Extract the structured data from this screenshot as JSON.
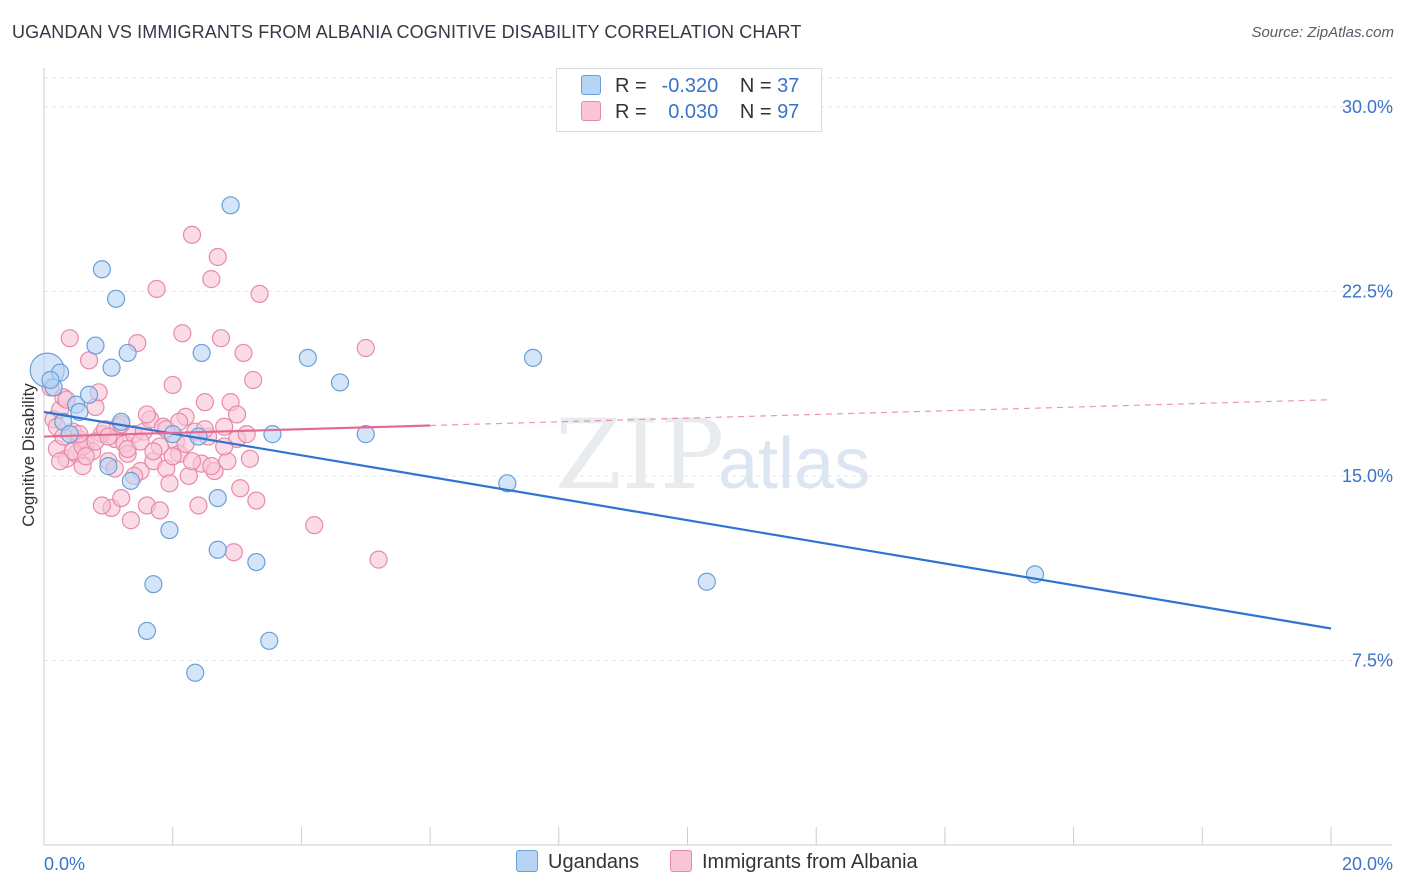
{
  "header": {
    "title": "UGANDAN VS IMMIGRANTS FROM ALBANIA COGNITIVE DISABILITY CORRELATION CHART",
    "source": "Source: ZipAtlas.com"
  },
  "legend": {
    "rows": [
      {
        "r_label": "R =",
        "r_value": "-0.320",
        "n_label": "N =",
        "n_value": "37"
      },
      {
        "r_label": "R =",
        "r_value": "0.030",
        "n_label": "N =",
        "n_value": "97"
      }
    ],
    "bottom": [
      {
        "label": "Ugandans"
      },
      {
        "label": "Immigrants from Albania"
      }
    ]
  },
  "watermark": {
    "zip": "ZIP",
    "atlas": "atlas"
  },
  "colors": {
    "ugandans_fill": "#b8d4f5",
    "ugandans_stroke": "#6a9fd8",
    "ugandans_line": "#2f74d0",
    "albania_fill": "#f8c4d6",
    "albania_stroke": "#e88aab",
    "albania_line": "#e46a93",
    "axis_label": "#3a73c9",
    "grid": "#e2e6ea"
  },
  "chart_data": {
    "type": "scatter",
    "title": "UGANDAN VS IMMIGRANTS FROM ALBANIA COGNITIVE DISABILITY CORRELATION CHART",
    "xlabel": "",
    "ylabel": "Cognitive Disability",
    "xlim": [
      0,
      20
    ],
    "ylim": [
      0,
      31.5
    ],
    "x_tick_labels": [
      "0.0%",
      "20.0%"
    ],
    "y_ticks": [
      7.5,
      15.0,
      22.5,
      30.0
    ],
    "y_tick_labels": [
      "7.5%",
      "15.0%",
      "22.5%",
      "30.0%"
    ],
    "grid": true,
    "legend_position": "top-center",
    "series": [
      {
        "name": "Ugandans",
        "R": -0.32,
        "N": 37,
        "trend": {
          "x": [
            0,
            20
          ],
          "y": [
            17.6,
            8.8
          ],
          "dashed_from": null
        },
        "points": [
          {
            "x": 0.05,
            "y": 19.3,
            "big": true
          },
          {
            "x": 0.15,
            "y": 18.6
          },
          {
            "x": 0.25,
            "y": 19.2
          },
          {
            "x": 0.3,
            "y": 17.2
          },
          {
            "x": 0.4,
            "y": 16.7
          },
          {
            "x": 0.5,
            "y": 17.9
          },
          {
            "x": 0.55,
            "y": 17.6
          },
          {
            "x": 0.7,
            "y": 18.3
          },
          {
            "x": 0.8,
            "y": 20.3
          },
          {
            "x": 0.9,
            "y": 23.4
          },
          {
            "x": 1.0,
            "y": 15.4
          },
          {
            "x": 1.05,
            "y": 19.4
          },
          {
            "x": 1.12,
            "y": 22.2
          },
          {
            "x": 1.2,
            "y": 17.2
          },
          {
            "x": 1.3,
            "y": 20.0
          },
          {
            "x": 1.35,
            "y": 14.8
          },
          {
            "x": 1.6,
            "y": 8.7
          },
          {
            "x": 1.7,
            "y": 10.6
          },
          {
            "x": 1.95,
            "y": 12.8
          },
          {
            "x": 2.0,
            "y": 16.7
          },
          {
            "x": 2.35,
            "y": 7.0
          },
          {
            "x": 2.4,
            "y": 16.6
          },
          {
            "x": 2.45,
            "y": 20.0
          },
          {
            "x": 2.7,
            "y": 12.0
          },
          {
            "x": 2.7,
            "y": 14.1
          },
          {
            "x": 2.9,
            "y": 26.0
          },
          {
            "x": 3.3,
            "y": 11.5
          },
          {
            "x": 3.5,
            "y": 8.3
          },
          {
            "x": 3.55,
            "y": 16.7
          },
          {
            "x": 4.1,
            "y": 19.8
          },
          {
            "x": 4.6,
            "y": 18.8
          },
          {
            "x": 5.0,
            "y": 16.7
          },
          {
            "x": 7.2,
            "y": 14.7
          },
          {
            "x": 7.6,
            "y": 19.8
          },
          {
            "x": 10.3,
            "y": 10.7
          },
          {
            "x": 15.4,
            "y": 11.0
          },
          {
            "x": 0.1,
            "y": 18.9
          }
        ]
      },
      {
        "name": "Immigrants from Albania",
        "R": 0.03,
        "N": 97,
        "trend": {
          "x": [
            0,
            20
          ],
          "y": [
            16.6,
            18.1
          ],
          "dashed_from": 6.0
        },
        "points": [
          {
            "x": 0.1,
            "y": 18.6
          },
          {
            "x": 0.15,
            "y": 17.3
          },
          {
            "x": 0.2,
            "y": 16.1
          },
          {
            "x": 0.25,
            "y": 17.7
          },
          {
            "x": 0.3,
            "y": 18.2
          },
          {
            "x": 0.35,
            "y": 15.7
          },
          {
            "x": 0.4,
            "y": 20.6
          },
          {
            "x": 0.45,
            "y": 16.8
          },
          {
            "x": 0.5,
            "y": 15.9
          },
          {
            "x": 0.55,
            "y": 16.5
          },
          {
            "x": 0.6,
            "y": 15.4
          },
          {
            "x": 0.65,
            "y": 16.3
          },
          {
            "x": 0.7,
            "y": 19.7
          },
          {
            "x": 0.75,
            "y": 16.0
          },
          {
            "x": 0.8,
            "y": 17.8
          },
          {
            "x": 0.85,
            "y": 18.4
          },
          {
            "x": 0.9,
            "y": 16.7
          },
          {
            "x": 0.95,
            "y": 16.9
          },
          {
            "x": 1.0,
            "y": 15.6
          },
          {
            "x": 1.05,
            "y": 13.7
          },
          {
            "x": 1.1,
            "y": 16.5
          },
          {
            "x": 1.15,
            "y": 17.0
          },
          {
            "x": 1.2,
            "y": 14.1
          },
          {
            "x": 1.25,
            "y": 16.3
          },
          {
            "x": 1.3,
            "y": 15.9
          },
          {
            "x": 1.35,
            "y": 13.2
          },
          {
            "x": 1.4,
            "y": 16.7
          },
          {
            "x": 1.45,
            "y": 20.4
          },
          {
            "x": 1.5,
            "y": 15.2
          },
          {
            "x": 1.55,
            "y": 16.8
          },
          {
            "x": 1.6,
            "y": 13.8
          },
          {
            "x": 1.65,
            "y": 17.3
          },
          {
            "x": 1.7,
            "y": 15.6
          },
          {
            "x": 1.75,
            "y": 22.6
          },
          {
            "x": 1.8,
            "y": 16.2
          },
          {
            "x": 1.85,
            "y": 17.0
          },
          {
            "x": 1.9,
            "y": 15.3
          },
          {
            "x": 1.95,
            "y": 14.7
          },
          {
            "x": 2.0,
            "y": 18.7
          },
          {
            "x": 2.05,
            "y": 16.4
          },
          {
            "x": 2.1,
            "y": 15.9
          },
          {
            "x": 2.15,
            "y": 20.8
          },
          {
            "x": 2.2,
            "y": 17.4
          },
          {
            "x": 2.25,
            "y": 15.0
          },
          {
            "x": 2.3,
            "y": 24.8
          },
          {
            "x": 2.35,
            "y": 16.8
          },
          {
            "x": 2.4,
            "y": 13.8
          },
          {
            "x": 2.45,
            "y": 15.5
          },
          {
            "x": 2.5,
            "y": 18.0
          },
          {
            "x": 2.55,
            "y": 16.6
          },
          {
            "x": 2.6,
            "y": 23.0
          },
          {
            "x": 2.65,
            "y": 15.2
          },
          {
            "x": 2.7,
            "y": 23.9
          },
          {
            "x": 2.75,
            "y": 20.6
          },
          {
            "x": 2.8,
            "y": 17.0
          },
          {
            "x": 2.85,
            "y": 15.6
          },
          {
            "x": 2.9,
            "y": 18.0
          },
          {
            "x": 2.95,
            "y": 11.9
          },
          {
            "x": 3.0,
            "y": 16.5
          },
          {
            "x": 3.05,
            "y": 14.5
          },
          {
            "x": 3.1,
            "y": 20.0
          },
          {
            "x": 3.15,
            "y": 16.7
          },
          {
            "x": 3.2,
            "y": 15.7
          },
          {
            "x": 3.25,
            "y": 18.9
          },
          {
            "x": 3.3,
            "y": 14.0
          },
          {
            "x": 3.35,
            "y": 22.4
          },
          {
            "x": 0.2,
            "y": 17.0
          },
          {
            "x": 0.3,
            "y": 16.6
          },
          {
            "x": 0.45,
            "y": 16.0
          },
          {
            "x": 0.6,
            "y": 16.2
          },
          {
            "x": 0.8,
            "y": 16.4
          },
          {
            "x": 0.9,
            "y": 13.8
          },
          {
            "x": 1.0,
            "y": 16.6
          },
          {
            "x": 1.1,
            "y": 15.3
          },
          {
            "x": 1.2,
            "y": 17.1
          },
          {
            "x": 1.3,
            "y": 16.1
          },
          {
            "x": 1.4,
            "y": 15.0
          },
          {
            "x": 1.5,
            "y": 16.4
          },
          {
            "x": 1.6,
            "y": 17.5
          },
          {
            "x": 1.7,
            "y": 16.0
          },
          {
            "x": 1.8,
            "y": 13.6
          },
          {
            "x": 1.9,
            "y": 16.9
          },
          {
            "x": 2.0,
            "y": 15.8
          },
          {
            "x": 2.1,
            "y": 17.2
          },
          {
            "x": 2.2,
            "y": 16.3
          },
          {
            "x": 2.3,
            "y": 15.6
          },
          {
            "x": 2.5,
            "y": 16.9
          },
          {
            "x": 2.6,
            "y": 15.4
          },
          {
            "x": 2.8,
            "y": 16.2
          },
          {
            "x": 3.0,
            "y": 17.5
          },
          {
            "x": 4.2,
            "y": 13.0
          },
          {
            "x": 5.0,
            "y": 20.2
          },
          {
            "x": 5.2,
            "y": 11.6
          },
          {
            "x": 0.25,
            "y": 15.6
          },
          {
            "x": 0.35,
            "y": 18.1
          },
          {
            "x": 0.55,
            "y": 16.7
          },
          {
            "x": 0.65,
            "y": 15.8
          }
        ]
      }
    ]
  }
}
